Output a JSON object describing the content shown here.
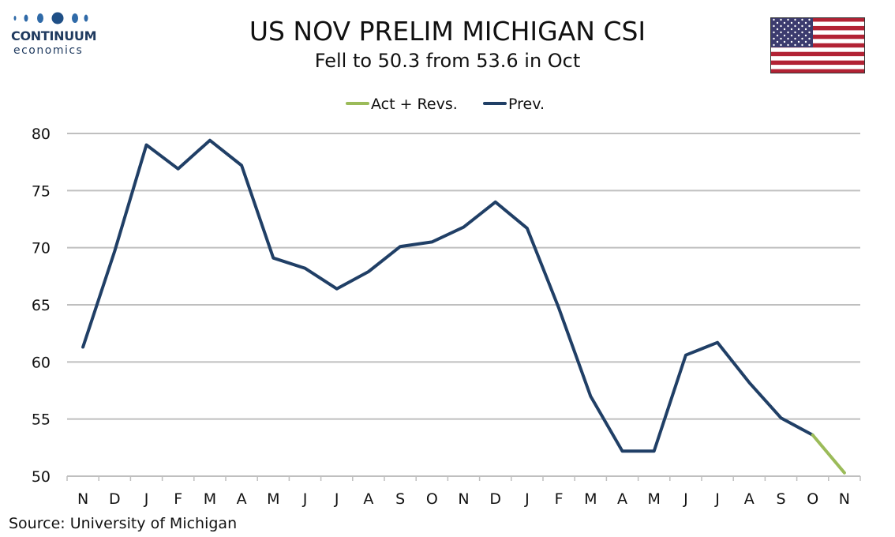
{
  "header": {
    "title": "US NOV PRELIM MICHIGAN CSI",
    "subtitle": "Fell to 50.3 from 53.6 in Oct"
  },
  "logo": {
    "name": "CONTINUUM",
    "tagline": "economics"
  },
  "source": "Source: University of Michigan",
  "colors": {
    "prev": "#203f66",
    "act": "#9bbb59",
    "grid": "#bfbfbf",
    "logo": "#1f3a5f",
    "flag_red": "#b22234",
    "flag_blue": "#3c3b6e"
  },
  "chart_data": {
    "type": "line",
    "title": "US NOV PRELIM MICHIGAN CSI",
    "subtitle": "Fell to 50.3 from 53.6 in Oct",
    "xlabel": "",
    "ylabel": "",
    "ylim": [
      50,
      80
    ],
    "yticks": [
      50,
      55,
      60,
      65,
      70,
      75,
      80
    ],
    "grid": true,
    "legend_position": "top-center",
    "categories": [
      "N",
      "D",
      "J",
      "F",
      "M",
      "A",
      "M",
      "J",
      "J",
      "A",
      "S",
      "O",
      "N",
      "D",
      "J",
      "F",
      "M",
      "A",
      "M",
      "J",
      "J",
      "A",
      "S",
      "O",
      "N"
    ],
    "series": [
      {
        "name": "Act + Revs.",
        "color": "#9bbb59",
        "values": [
          null,
          null,
          null,
          null,
          null,
          null,
          null,
          null,
          null,
          null,
          null,
          null,
          null,
          null,
          null,
          null,
          null,
          null,
          null,
          null,
          null,
          null,
          null,
          53.6,
          50.3
        ]
      },
      {
        "name": "Prev.",
        "color": "#203f66",
        "values": [
          61.3,
          69.7,
          79.0,
          76.9,
          79.4,
          77.2,
          69.1,
          68.2,
          66.4,
          67.9,
          70.1,
          70.5,
          71.8,
          74.0,
          71.7,
          64.7,
          57.0,
          52.2,
          52.2,
          60.6,
          61.7,
          58.2,
          55.1,
          53.6,
          null
        ]
      }
    ]
  }
}
